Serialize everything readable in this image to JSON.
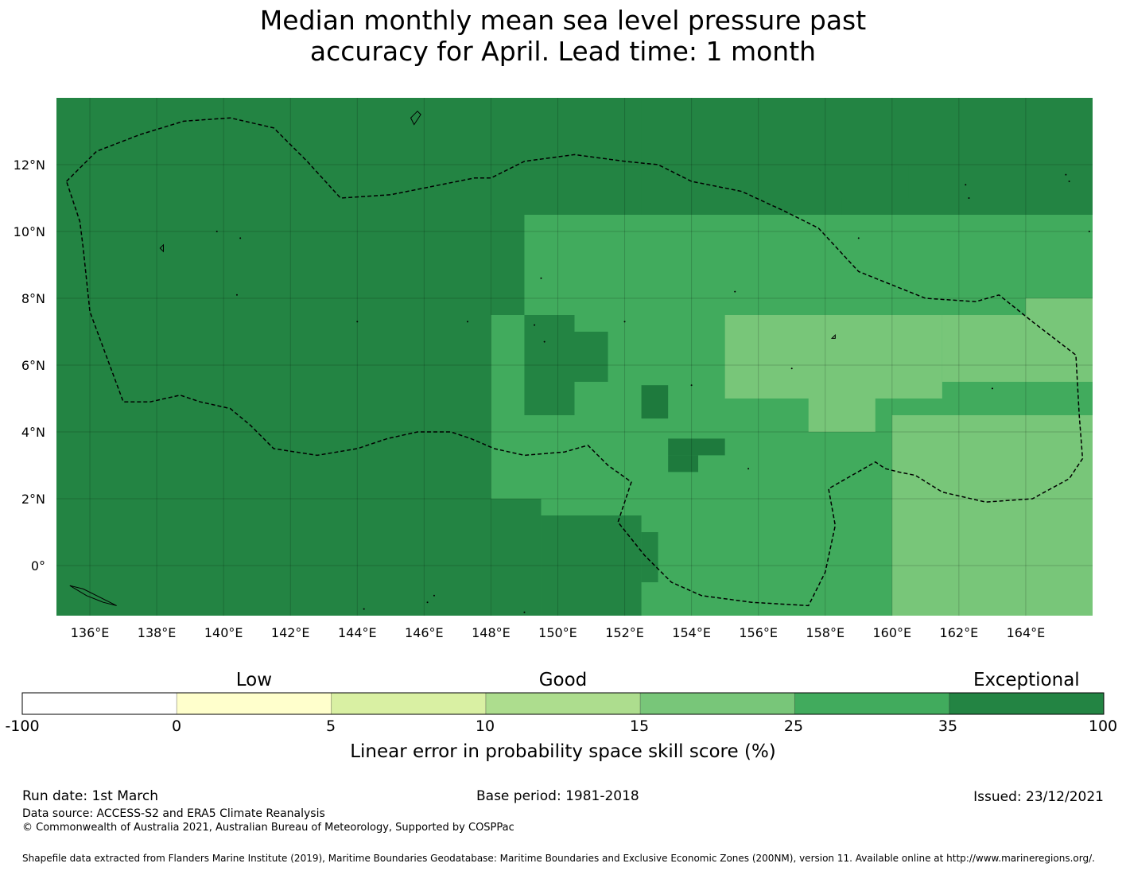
{
  "title": {
    "line1": "Median monthly mean sea level pressure past",
    "line2": "accuracy for April. Lead time: 1 month"
  },
  "map": {
    "lat_labels": [
      "12°N",
      "10°N",
      "8°N",
      "6°N",
      "4°N",
      "2°N",
      "0°"
    ],
    "lat_values": [
      12,
      10,
      8,
      6,
      4,
      2,
      0
    ],
    "lon_labels": [
      "136°E",
      "138°E",
      "140°E",
      "142°E",
      "144°E",
      "146°E",
      "148°E",
      "150°E",
      "152°E",
      "154°E",
      "156°E",
      "158°E",
      "160°E",
      "162°E",
      "164°E"
    ],
    "lon_values": [
      136,
      138,
      140,
      142,
      144,
      146,
      148,
      150,
      152,
      154,
      156,
      158,
      160,
      162,
      164
    ],
    "lon_range": [
      135.0,
      166.0
    ],
    "lat_range": [
      -1.5,
      14.0
    ],
    "colors": {
      "exceptional": "#238443",
      "dark_cell": "#1e7a3d",
      "band_25_35": "#41ab5d",
      "band_15_25": "#78c679"
    },
    "skill_regions": [
      {
        "band": "band_25_35",
        "lon": [
          148.0,
          166.0
        ],
        "lat": [
          -1.5,
          10.5
        ]
      },
      {
        "band": "exceptional",
        "lon": [
          152.5,
          166.0
        ],
        "lat": [
          12.0,
          14.0
        ]
      },
      {
        "band": "exceptional",
        "lon": [
          152.5,
          160.5
        ],
        "lat": [
          11.0,
          12.0
        ]
      },
      {
        "band": "exceptional",
        "lon": [
          152.5,
          158.5
        ],
        "lat": [
          10.5,
          11.0
        ]
      },
      {
        "band": "exceptional",
        "lon": [
          148.0,
          149.0
        ],
        "lat": [
          7.5,
          10.5
        ]
      },
      {
        "band": "exceptional",
        "lon": [
          149.0,
          150.5
        ],
        "lat": [
          4.5,
          7.5
        ]
      },
      {
        "band": "exceptional",
        "lon": [
          150.5,
          151.5
        ],
        "lat": [
          5.5,
          7.0
        ]
      },
      {
        "band": "exceptional",
        "lon": [
          148.0,
          149.5
        ],
        "lat": [
          -1.5,
          2.0
        ]
      },
      {
        "band": "exceptional",
        "lon": [
          149.5,
          152.5
        ],
        "lat": [
          -1.5,
          1.5
        ]
      },
      {
        "band": "exceptional",
        "lon": [
          152.5,
          153.0
        ],
        "lat": [
          -0.5,
          1.0
        ]
      },
      {
        "band": "band_15_25",
        "lon": [
          155.0,
          161.5
        ],
        "lat": [
          5.0,
          7.5
        ]
      },
      {
        "band": "band_15_25",
        "lon": [
          157.5,
          159.5
        ],
        "lat": [
          4.0,
          5.0
        ]
      },
      {
        "band": "band_15_25",
        "lon": [
          161.5,
          166.0
        ],
        "lat": [
          5.5,
          7.5
        ]
      },
      {
        "band": "band_15_25",
        "lon": [
          160.0,
          166.0
        ],
        "lat": [
          -1.5,
          4.5
        ]
      },
      {
        "band": "band_15_25",
        "lon": [
          164.0,
          166.0
        ],
        "lat": [
          7.5,
          8.0
        ]
      }
    ],
    "dark_cells": [
      {
        "lon": [
          152.5,
          153.3
        ],
        "lat": [
          4.4,
          5.4
        ]
      },
      {
        "lon": [
          153.3,
          155.0
        ],
        "lat": [
          3.3,
          3.8
        ]
      },
      {
        "lon": [
          153.3,
          154.2
        ],
        "lat": [
          2.8,
          3.3
        ]
      }
    ],
    "eez_boundaries": [
      {
        "points": [
          [
            135.3,
            11.5
          ],
          [
            136.2,
            12.4
          ],
          [
            137.5,
            12.9
          ],
          [
            138.8,
            13.3
          ],
          [
            140.2,
            13.4
          ],
          [
            141.5,
            13.1
          ],
          [
            142.5,
            12.1
          ],
          [
            143.5,
            11.0
          ],
          [
            145.0,
            11.1
          ],
          [
            147.5,
            11.6
          ],
          [
            148.0,
            11.6
          ],
          [
            149.0,
            12.1
          ],
          [
            150.5,
            12.3
          ],
          [
            152.0,
            12.1
          ],
          [
            153.0,
            12.0
          ],
          [
            154.0,
            11.5
          ],
          [
            155.5,
            11.2
          ],
          [
            156.8,
            10.6
          ],
          [
            157.8,
            10.1
          ],
          [
            159.0,
            8.8
          ],
          [
            160.0,
            8.4
          ],
          [
            161.0,
            8.0
          ],
          [
            162.5,
            7.9
          ],
          [
            163.2,
            8.1
          ],
          [
            164.2,
            7.3
          ],
          [
            165.5,
            6.3
          ],
          [
            165.6,
            4.5
          ],
          [
            165.7,
            3.2
          ],
          [
            165.3,
            2.6
          ],
          [
            164.2,
            2.0
          ],
          [
            162.8,
            1.9
          ],
          [
            161.5,
            2.2
          ],
          [
            160.7,
            2.7
          ],
          [
            160.2,
            2.8
          ],
          [
            159.8,
            2.9
          ],
          [
            159.5,
            3.1
          ],
          [
            158.8,
            2.7
          ],
          [
            158.1,
            2.3
          ],
          [
            158.3,
            1.2
          ],
          [
            158.0,
            -0.2
          ],
          [
            157.5,
            -1.2
          ],
          [
            155.8,
            -1.1
          ],
          [
            154.3,
            -0.9
          ],
          [
            153.4,
            -0.5
          ],
          [
            152.6,
            0.3
          ],
          [
            151.8,
            1.3
          ],
          [
            152.2,
            2.5
          ],
          [
            151.5,
            3.0
          ],
          [
            150.9,
            3.6
          ],
          [
            150.2,
            3.4
          ],
          [
            149.0,
            3.3
          ],
          [
            148.1,
            3.5
          ],
          [
            147.4,
            3.8
          ],
          [
            146.8,
            4.0
          ],
          [
            145.8,
            4.0
          ],
          [
            144.9,
            3.8
          ],
          [
            144.0,
            3.5
          ],
          [
            142.8,
            3.3
          ],
          [
            141.5,
            3.5
          ],
          [
            140.8,
            4.2
          ],
          [
            140.2,
            4.7
          ],
          [
            139.3,
            4.9
          ],
          [
            138.7,
            5.1
          ],
          [
            137.8,
            4.9
          ],
          [
            137.0,
            4.9
          ],
          [
            136.0,
            7.6
          ],
          [
            135.8,
            9.5
          ],
          [
            135.7,
            10.3
          ],
          [
            135.3,
            11.5
          ]
        ]
      }
    ],
    "islands": [
      {
        "points": [
          [
            145.6,
            13.4
          ],
          [
            145.8,
            13.6
          ],
          [
            145.9,
            13.5
          ],
          [
            145.7,
            13.2
          ],
          [
            145.6,
            13.4
          ]
        ]
      },
      {
        "points": [
          [
            138.1,
            9.5
          ],
          [
            138.2,
            9.6
          ],
          [
            138.2,
            9.4
          ],
          [
            138.1,
            9.5
          ]
        ]
      },
      {
        "points": [
          [
            158.2,
            6.8
          ],
          [
            158.3,
            6.9
          ],
          [
            158.3,
            6.8
          ],
          [
            158.2,
            6.8
          ]
        ]
      },
      {
        "points": [
          [
            135.4,
            -0.6
          ],
          [
            135.9,
            -0.9
          ],
          [
            136.4,
            -1.1
          ],
          [
            136.8,
            -1.2
          ],
          [
            135.8,
            -0.7
          ],
          [
            135.4,
            -0.6
          ]
        ]
      }
    ],
    "island_dots": [
      [
        139.8,
        10.0
      ],
      [
        140.5,
        9.8
      ],
      [
        152.0,
        7.3
      ],
      [
        149.3,
        7.2
      ],
      [
        147.3,
        7.3
      ],
      [
        144.0,
        7.3
      ],
      [
        155.3,
        8.2
      ],
      [
        157.0,
        5.9
      ],
      [
        163.0,
        5.3
      ],
      [
        162.2,
        11.4
      ],
      [
        162.3,
        11.0
      ],
      [
        165.2,
        11.7
      ],
      [
        165.3,
        11.5
      ],
      [
        159.0,
        9.8
      ],
      [
        154.0,
        5.4
      ],
      [
        149.5,
        8.6
      ],
      [
        140.4,
        8.1
      ],
      [
        149.6,
        6.7
      ],
      [
        146.3,
        -0.9
      ],
      [
        146.1,
        -1.1
      ],
      [
        144.2,
        -1.3
      ],
      [
        149.0,
        -1.4
      ],
      [
        155.7,
        2.9
      ],
      [
        165.9,
        10.0
      ]
    ]
  },
  "colorbar": {
    "categories": [
      {
        "label": "Low",
        "center_value": 2.5
      },
      {
        "label": "Good",
        "center_value": 12.5
      },
      {
        "label": "Exceptional",
        "center_value": 67.5
      }
    ],
    "ticks": [
      "-100",
      "0",
      "5",
      "10",
      "15",
      "25",
      "35",
      "100"
    ],
    "colors": [
      "#ffffff",
      "#ffffcc",
      "#d9f0a3",
      "#addd8e",
      "#78c679",
      "#41ab5d",
      "#238443"
    ],
    "title": "Linear error in probability space skill score (%)"
  },
  "footer": {
    "run_date": "Run date: 1st March",
    "base_period": "Base period: 1981-2018",
    "issued": "Issued: 23/12/2021",
    "data_source": "Data source: ACCESS-S2 and ERA5 Climate Reanalysis",
    "copyright": "© Commonwealth of Australia 2021, Australian Bureau of Meteorology, Supported by COSPPac",
    "shapefile_credit": "Shapefile data extracted from Flanders Marine Institute (2019), Maritime Boundaries Geodatabase: Maritime Boundaries and Exclusive Economic Zones (200NM), version 11. Available online at http://www.marineregions.org/."
  }
}
